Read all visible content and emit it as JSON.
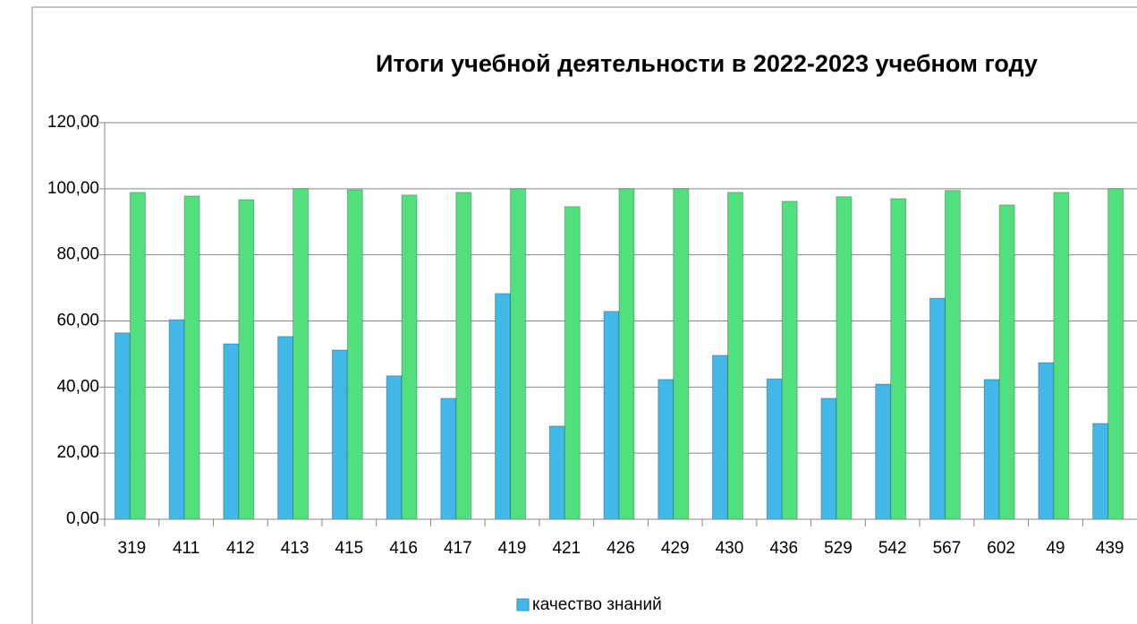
{
  "chart_data": {
    "type": "bar",
    "title": "Итоги учебной деятельности в 2022-2023 учебном году",
    "categories": [
      "319",
      "411",
      "412",
      "413",
      "415",
      "416",
      "417",
      "419",
      "421",
      "426",
      "429",
      "430",
      "436",
      "529",
      "542",
      "567",
      "602",
      "49",
      "439"
    ],
    "series": [
      {
        "name": "качество знаний",
        "color": "#41b8e8",
        "values": [
          56.4,
          60.4,
          53.1,
          55.3,
          51.2,
          43.4,
          36.6,
          68.3,
          28.2,
          62.9,
          42.3,
          49.6,
          42.5,
          36.6,
          40.9,
          66.9,
          42.3,
          47.4,
          29.0
        ]
      },
      {
        "color": "#52e07e",
        "values": [
          98.9,
          97.8,
          96.7,
          100,
          99.7,
          98.1,
          98.9,
          100,
          94.6,
          100,
          100,
          98.9,
          96.2,
          97.6,
          97.0,
          99.5,
          95.1,
          98.9,
          100
        ]
      }
    ],
    "ylim": [
      0,
      120
    ],
    "yticks": [
      {
        "value": 0,
        "label": "0,00"
      },
      {
        "value": 20,
        "label": "20,00"
      },
      {
        "value": 40,
        "label": "40,00"
      },
      {
        "value": 60,
        "label": "60,00"
      },
      {
        "value": 80,
        "label": "80,00"
      },
      {
        "value": 100,
        "label": "100,00"
      },
      {
        "value": 120,
        "label": "120,00"
      }
    ],
    "grid": true,
    "legend": "bottom"
  }
}
